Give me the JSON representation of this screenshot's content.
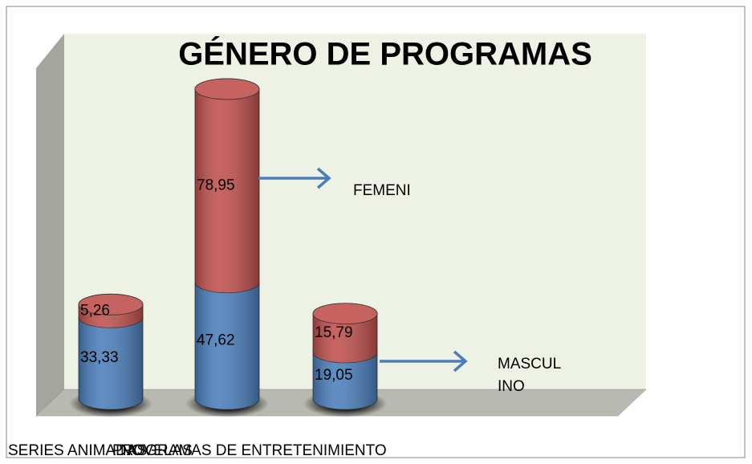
{
  "chart_data": {
    "type": "bar3d-stacked",
    "title": "GÉNERO DE PROGRAMAS",
    "categories": [
      "SERIES ANIMADAS",
      "NOVELAS",
      "PROGRAMAS DE ENTRETENIMIENTO"
    ],
    "series": [
      {
        "name": "MASCULINO",
        "color": "#4a7ebb",
        "values": [
          33.33,
          47.62,
          19.05
        ],
        "value_labels": [
          "33,33",
          "47,62",
          "19,05"
        ]
      },
      {
        "name": "FEMENI",
        "color": "#c0504d",
        "values": [
          5.26,
          78.95,
          15.79
        ],
        "value_labels": [
          "5,26",
          "78,95",
          "15,79"
        ]
      }
    ]
  }
}
